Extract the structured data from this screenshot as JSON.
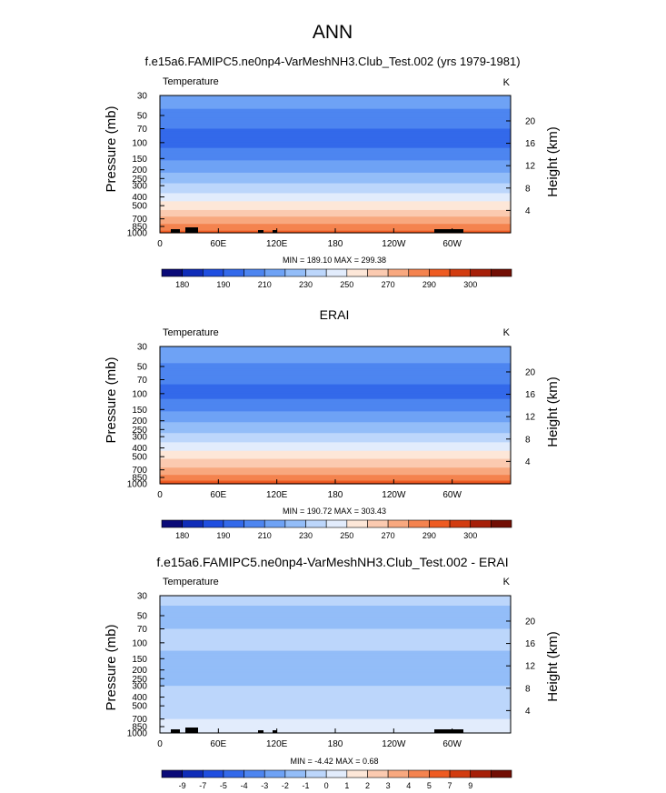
{
  "figure": {
    "title": "ANN"
  },
  "colors": {
    "temp_palette": [
      "#0a0a78",
      "#0f2cb8",
      "#1f4ee0",
      "#3369ea",
      "#4d85f0",
      "#6ea2f5",
      "#93bdf8",
      "#bcd6fb",
      "#e2ecfc",
      "#fde7d8",
      "#fbcab0",
      "#f8a87f",
      "#f4834f",
      "#ee5b22",
      "#d23c10",
      "#a61f08",
      "#720e04"
    ],
    "diff_palette": [
      "#0a0a78",
      "#0f2cb8",
      "#1f4ee0",
      "#3369ea",
      "#4d85f0",
      "#6ea2f5",
      "#93bdf8",
      "#bcd6fb",
      "#e2ecfc",
      "#fde7d8",
      "#fbcab0",
      "#f8a87f",
      "#f4834f",
      "#ee5b22",
      "#d23c10",
      "#a61f08",
      "#720e04"
    ],
    "topography": "#000000"
  },
  "chart_data": [
    {
      "type": "heatmap",
      "title": "f.e15a6.FAMIPC5.ne0np4-VarMeshNH3.Club_Test.002 (yrs 1979-1981)",
      "variable": "Temperature",
      "units": "K",
      "ylabel": "Pressure (mb)",
      "ylabel_right": "Height (km)",
      "y_ticks": [
        "30",
        "50",
        "70",
        "100",
        "150",
        "200",
        "250",
        "300",
        "400",
        "500",
        "700",
        "850",
        "1000"
      ],
      "y_ticks_right": [
        "20",
        "16",
        "12",
        "8",
        "4"
      ],
      "x_ticks": [
        "0",
        "60E",
        "120E",
        "180",
        "120W",
        "60W"
      ],
      "minmax": "MIN = 189.10  MAX = 299.38",
      "colorbar_labels": [
        "180",
        "190",
        "210",
        "230",
        "250",
        "270",
        "290",
        "300"
      ],
      "profile": [
        {
          "p": 30,
          "t": 215
        },
        {
          "p": 50,
          "t": 208
        },
        {
          "p": 70,
          "t": 200
        },
        {
          "p": 100,
          "t": 196
        },
        {
          "p": 150,
          "t": 208
        },
        {
          "p": 200,
          "t": 218
        },
        {
          "p": 250,
          "t": 225
        },
        {
          "p": 300,
          "t": 232
        },
        {
          "p": 400,
          "t": 245
        },
        {
          "p": 500,
          "t": 255
        },
        {
          "p": 700,
          "t": 272
        },
        {
          "p": 850,
          "t": 283
        },
        {
          "p": 1000,
          "t": 294
        }
      ],
      "min": 189.1,
      "max": 299.38
    },
    {
      "type": "heatmap",
      "title": "ERAI",
      "variable": "Temperature",
      "units": "K",
      "ylabel": "Pressure (mb)",
      "ylabel_right": "Height (km)",
      "y_ticks": [
        "30",
        "50",
        "70",
        "100",
        "150",
        "200",
        "250",
        "300",
        "400",
        "500",
        "700",
        "850",
        "1000"
      ],
      "y_ticks_right": [
        "20",
        "16",
        "12",
        "8",
        "4"
      ],
      "x_ticks": [
        "0",
        "60E",
        "120E",
        "180",
        "120W",
        "60W"
      ],
      "minmax": "MIN = 190.72  MAX = 303.43",
      "colorbar_labels": [
        "180",
        "190",
        "210",
        "230",
        "250",
        "270",
        "290",
        "300"
      ],
      "profile": [
        {
          "p": 30,
          "t": 216
        },
        {
          "p": 50,
          "t": 209
        },
        {
          "p": 70,
          "t": 201
        },
        {
          "p": 100,
          "t": 197
        },
        {
          "p": 150,
          "t": 208
        },
        {
          "p": 200,
          "t": 218
        },
        {
          "p": 250,
          "t": 226
        },
        {
          "p": 300,
          "t": 233
        },
        {
          "p": 400,
          "t": 246
        },
        {
          "p": 500,
          "t": 256
        },
        {
          "p": 700,
          "t": 273
        },
        {
          "p": 850,
          "t": 284
        },
        {
          "p": 1000,
          "t": 296
        }
      ],
      "min": 190.72,
      "max": 303.43
    },
    {
      "type": "heatmap",
      "title": "f.e15a6.FAMIPC5.ne0np4-VarMeshNH3.Club_Test.002 - ERAI",
      "variable": "Temperature",
      "units": "K",
      "ylabel": "Pressure (mb)",
      "ylabel_right": "Height (km)",
      "y_ticks": [
        "30",
        "50",
        "70",
        "100",
        "150",
        "200",
        "250",
        "300",
        "400",
        "500",
        "700",
        "850",
        "1000"
      ],
      "y_ticks_right": [
        "20",
        "16",
        "12",
        "8",
        "4"
      ],
      "x_ticks": [
        "0",
        "60E",
        "120E",
        "180",
        "120W",
        "60W"
      ],
      "minmax": "MIN =  -4.42  MAX =   0.68",
      "colorbar_labels": [
        "-9",
        "-7",
        "-5",
        "-4",
        "-3",
        "-2",
        "-1",
        "0",
        "1",
        "2",
        "3",
        "4",
        "5",
        "7",
        "9"
      ],
      "profile": [
        {
          "p": 30,
          "t": -1.5
        },
        {
          "p": 50,
          "t": -2.5
        },
        {
          "p": 70,
          "t": -2.0
        },
        {
          "p": 100,
          "t": -1.5
        },
        {
          "p": 150,
          "t": -2.5
        },
        {
          "p": 200,
          "t": -3.0
        },
        {
          "p": 250,
          "t": -2.5
        },
        {
          "p": 300,
          "t": -2.0
        },
        {
          "p": 400,
          "t": -1.5
        },
        {
          "p": 500,
          "t": -1.5
        },
        {
          "p": 700,
          "t": -1.0
        },
        {
          "p": 850,
          "t": -0.5
        },
        {
          "p": 1000,
          "t": -1.0
        }
      ],
      "min": -4.42,
      "max": 0.68
    }
  ]
}
